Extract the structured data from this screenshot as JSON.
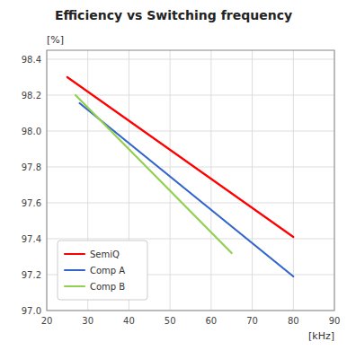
{
  "chart_data": {
    "type": "line",
    "title": "Efficiency vs Switching frequency",
    "xlabel": "[kHz]",
    "ylabel": "[%]",
    "xlim": [
      20,
      90
    ],
    "ylim": [
      97.0,
      98.45
    ],
    "xticks": [
      20,
      30,
      40,
      50,
      60,
      70,
      80,
      90
    ],
    "yticks": [
      {
        "value": 97.0,
        "label": "97.0"
      },
      97.2,
      97.4,
      97.6,
      97.8,
      {
        "value": 98.0,
        "label": "98.0"
      },
      98.2,
      98.4
    ],
    "grid": true,
    "legend": "lower left",
    "series": [
      {
        "name": "SemiQ",
        "color": "#FF0000",
        "x": [
          25,
          80
        ],
        "values": [
          98.3,
          97.41
        ]
      },
      {
        "name": "Comp A",
        "color": "#3366CC",
        "x": [
          28,
          80
        ],
        "values": [
          98.155,
          97.19
        ]
      },
      {
        "name": "Comp B",
        "color": "#92D050",
        "x": [
          27,
          65
        ],
        "values": [
          98.2,
          97.32
        ]
      }
    ]
  }
}
